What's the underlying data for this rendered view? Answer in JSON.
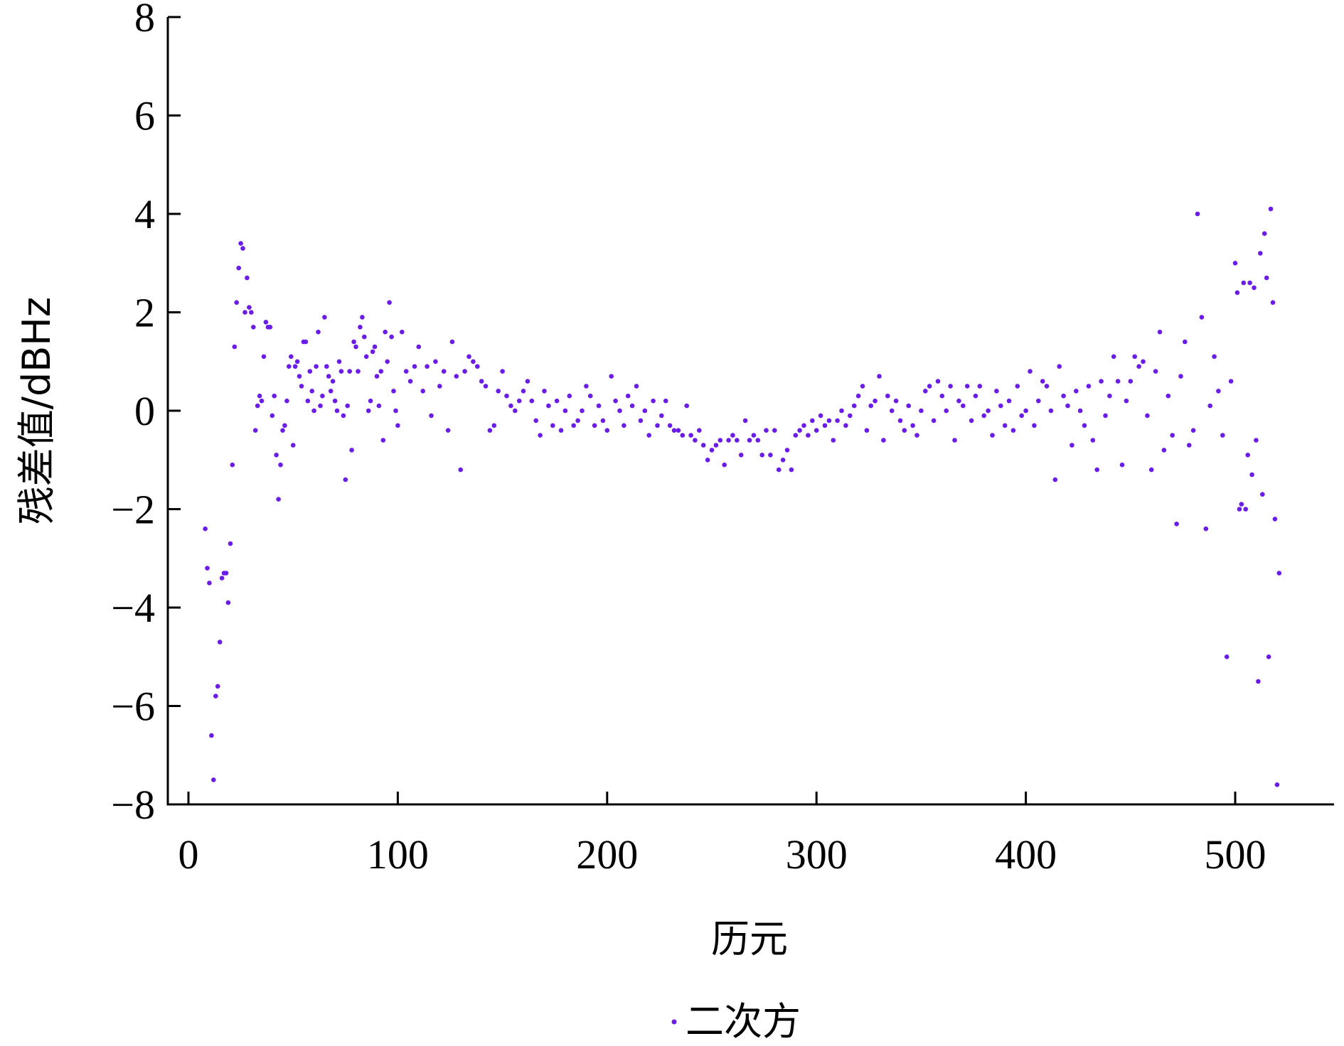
{
  "chart_data": {
    "type": "scatter",
    "title": "",
    "xlabel": "历元",
    "ylabel": "残差值/dBHz",
    "xlim": [
      -10,
      550
    ],
    "ylim": [
      -8,
      8
    ],
    "xticks": [
      0,
      100,
      200,
      300,
      400,
      500
    ],
    "yticks": [
      -8,
      -6,
      -4,
      -2,
      0,
      2,
      4,
      6,
      8
    ],
    "xtick_labels": [
      "0",
      "100",
      "200",
      "300",
      "400",
      "500"
    ],
    "ytick_labels": [
      "−8",
      "−6",
      "−4",
      "−2",
      "0",
      "2",
      "4",
      "6",
      "8"
    ],
    "grid": false,
    "legend_position": "bottom-center",
    "series": [
      {
        "name": "二次方",
        "color": "#6a1de8",
        "marker": "dot",
        "points": [
          [
            8,
            -2.4
          ],
          [
            9,
            -3.2
          ],
          [
            10,
            -3.5
          ],
          [
            11,
            -6.6
          ],
          [
            12,
            -7.5
          ],
          [
            13,
            -5.8
          ],
          [
            14,
            -5.6
          ],
          [
            15,
            -4.7
          ],
          [
            16,
            -3.4
          ],
          [
            17,
            -3.3
          ],
          [
            18,
            -3.3
          ],
          [
            19,
            -3.9
          ],
          [
            20,
            -2.7
          ],
          [
            21,
            -1.1
          ],
          [
            22,
            1.3
          ],
          [
            23,
            2.2
          ],
          [
            24,
            2.9
          ],
          [
            25,
            3.4
          ],
          [
            26,
            3.3
          ],
          [
            27,
            2.0
          ],
          [
            28,
            2.7
          ],
          [
            29,
            2.1
          ],
          [
            30,
            2.0
          ],
          [
            31,
            1.7
          ],
          [
            32,
            -0.4
          ],
          [
            33,
            0.1
          ],
          [
            34,
            0.3
          ],
          [
            35,
            0.2
          ],
          [
            36,
            1.1
          ],
          [
            37,
            1.8
          ],
          [
            38,
            1.7
          ],
          [
            39,
            1.7
          ],
          [
            40,
            -0.1
          ],
          [
            41,
            0.3
          ],
          [
            42,
            -0.9
          ],
          [
            43,
            -1.8
          ],
          [
            44,
            -1.1
          ],
          [
            45,
            -0.4
          ],
          [
            46,
            -0.3
          ],
          [
            47,
            0.2
          ],
          [
            48,
            0.9
          ],
          [
            49,
            1.1
          ],
          [
            50,
            -0.7
          ],
          [
            51,
            0.9
          ],
          [
            52,
            1.0
          ],
          [
            53,
            0.7
          ],
          [
            54,
            0.5
          ],
          [
            55,
            1.4
          ],
          [
            56,
            1.4
          ],
          [
            57,
            0.2
          ],
          [
            58,
            0.8
          ],
          [
            59,
            0.4
          ],
          [
            60,
            0.0
          ],
          [
            61,
            0.9
          ],
          [
            62,
            1.6
          ],
          [
            63,
            0.1
          ],
          [
            64,
            0.3
          ],
          [
            65,
            1.9
          ],
          [
            66,
            0.9
          ],
          [
            67,
            0.7
          ],
          [
            68,
            0.4
          ],
          [
            69,
            0.6
          ],
          [
            70,
            0.2
          ],
          [
            71,
            0.0
          ],
          [
            72,
            1.0
          ],
          [
            73,
            0.8
          ],
          [
            74,
            -0.1
          ],
          [
            75,
            -1.4
          ],
          [
            76,
            0.1
          ],
          [
            77,
            0.8
          ],
          [
            78,
            -0.8
          ],
          [
            79,
            1.4
          ],
          [
            80,
            1.3
          ],
          [
            81,
            0.8
          ],
          [
            82,
            1.7
          ],
          [
            83,
            1.9
          ],
          [
            84,
            1.5
          ],
          [
            85,
            1.1
          ],
          [
            86,
            0.0
          ],
          [
            87,
            0.2
          ],
          [
            88,
            1.2
          ],
          [
            89,
            1.3
          ],
          [
            90,
            0.7
          ],
          [
            91,
            0.1
          ],
          [
            92,
            0.8
          ],
          [
            93,
            -0.6
          ],
          [
            94,
            1.6
          ],
          [
            95,
            1.0
          ],
          [
            96,
            2.2
          ],
          [
            97,
            1.5
          ],
          [
            98,
            0.4
          ],
          [
            99,
            0.0
          ],
          [
            100,
            -0.3
          ],
          [
            102,
            1.6
          ],
          [
            104,
            0.8
          ],
          [
            106,
            0.6
          ],
          [
            108,
            0.9
          ],
          [
            110,
            1.3
          ],
          [
            112,
            0.4
          ],
          [
            114,
            0.9
          ],
          [
            116,
            -0.1
          ],
          [
            118,
            1.0
          ],
          [
            120,
            0.5
          ],
          [
            122,
            0.8
          ],
          [
            124,
            -0.4
          ],
          [
            126,
            1.4
          ],
          [
            128,
            0.7
          ],
          [
            130,
            -1.2
          ],
          [
            132,
            0.8
          ],
          [
            134,
            1.1
          ],
          [
            136,
            1.0
          ],
          [
            138,
            0.9
          ],
          [
            140,
            0.6
          ],
          [
            142,
            0.5
          ],
          [
            144,
            -0.4
          ],
          [
            146,
            -0.3
          ],
          [
            148,
            0.4
          ],
          [
            150,
            0.8
          ],
          [
            152,
            0.3
          ],
          [
            154,
            0.1
          ],
          [
            156,
            0.0
          ],
          [
            158,
            0.2
          ],
          [
            160,
            0.4
          ],
          [
            162,
            0.6
          ],
          [
            164,
            0.2
          ],
          [
            166,
            -0.2
          ],
          [
            168,
            -0.5
          ],
          [
            170,
            0.4
          ],
          [
            172,
            0.1
          ],
          [
            174,
            -0.3
          ],
          [
            176,
            0.2
          ],
          [
            178,
            -0.4
          ],
          [
            180,
            0.0
          ],
          [
            182,
            0.3
          ],
          [
            184,
            -0.3
          ],
          [
            186,
            -0.2
          ],
          [
            188,
            0.0
          ],
          [
            190,
            0.5
          ],
          [
            192,
            0.3
          ],
          [
            194,
            -0.3
          ],
          [
            196,
            0.1
          ],
          [
            198,
            -0.2
          ],
          [
            200,
            -0.4
          ],
          [
            202,
            0.7
          ],
          [
            204,
            0.2
          ],
          [
            206,
            0.0
          ],
          [
            208,
            -0.3
          ],
          [
            210,
            0.3
          ],
          [
            212,
            0.1
          ],
          [
            214,
            0.5
          ],
          [
            216,
            -0.2
          ],
          [
            218,
            0.0
          ],
          [
            220,
            -0.5
          ],
          [
            222,
            0.2
          ],
          [
            224,
            -0.3
          ],
          [
            226,
            -0.1
          ],
          [
            228,
            0.2
          ],
          [
            230,
            -0.3
          ],
          [
            232,
            -0.4
          ],
          [
            234,
            -0.4
          ],
          [
            236,
            -0.5
          ],
          [
            238,
            0.1
          ],
          [
            240,
            -0.5
          ],
          [
            242,
            -0.6
          ],
          [
            244,
            -0.4
          ],
          [
            246,
            -0.7
          ],
          [
            248,
            -1.0
          ],
          [
            250,
            -0.8
          ],
          [
            252,
            -0.7
          ],
          [
            254,
            -0.6
          ],
          [
            256,
            -1.1
          ],
          [
            258,
            -0.6
          ],
          [
            260,
            -0.5
          ],
          [
            262,
            -0.6
          ],
          [
            264,
            -0.9
          ],
          [
            266,
            -0.2
          ],
          [
            268,
            -0.6
          ],
          [
            270,
            -0.5
          ],
          [
            272,
            -0.6
          ],
          [
            274,
            -0.9
          ],
          [
            276,
            -0.4
          ],
          [
            278,
            -0.9
          ],
          [
            280,
            -0.4
          ],
          [
            282,
            -1.2
          ],
          [
            284,
            -1.0
          ],
          [
            286,
            -0.8
          ],
          [
            288,
            -1.2
          ],
          [
            290,
            -0.5
          ],
          [
            292,
            -0.4
          ],
          [
            294,
            -0.3
          ],
          [
            296,
            -0.5
          ],
          [
            298,
            -0.2
          ],
          [
            300,
            -0.4
          ],
          [
            302,
            -0.1
          ],
          [
            304,
            -0.3
          ],
          [
            306,
            -0.2
          ],
          [
            308,
            -0.6
          ],
          [
            310,
            -0.2
          ],
          [
            312,
            0.0
          ],
          [
            314,
            -0.3
          ],
          [
            316,
            -0.1
          ],
          [
            318,
            0.1
          ],
          [
            320,
            0.3
          ],
          [
            322,
            0.5
          ],
          [
            324,
            -0.4
          ],
          [
            326,
            0.1
          ],
          [
            328,
            0.2
          ],
          [
            330,
            0.7
          ],
          [
            332,
            -0.6
          ],
          [
            334,
            0.3
          ],
          [
            336,
            0.0
          ],
          [
            338,
            0.2
          ],
          [
            340,
            -0.2
          ],
          [
            342,
            -0.4
          ],
          [
            344,
            0.1
          ],
          [
            346,
            -0.3
          ],
          [
            348,
            -0.5
          ],
          [
            350,
            0.0
          ],
          [
            352,
            0.4
          ],
          [
            354,
            0.5
          ],
          [
            356,
            -0.2
          ],
          [
            358,
            0.6
          ],
          [
            360,
            0.3
          ],
          [
            362,
            0.0
          ],
          [
            364,
            0.5
          ],
          [
            366,
            -0.6
          ],
          [
            368,
            0.2
          ],
          [
            370,
            0.1
          ],
          [
            372,
            0.5
          ],
          [
            374,
            -0.2
          ],
          [
            376,
            0.3
          ],
          [
            378,
            0.5
          ],
          [
            380,
            -0.1
          ],
          [
            382,
            0.0
          ],
          [
            384,
            -0.5
          ],
          [
            386,
            0.4
          ],
          [
            388,
            0.1
          ],
          [
            390,
            -0.3
          ],
          [
            392,
            0.2
          ],
          [
            394,
            -0.4
          ],
          [
            396,
            0.5
          ],
          [
            398,
            -0.1
          ],
          [
            400,
            0.0
          ],
          [
            402,
            0.8
          ],
          [
            404,
            -0.3
          ],
          [
            406,
            0.2
          ],
          [
            408,
            0.6
          ],
          [
            410,
            0.5
          ],
          [
            412,
            0.0
          ],
          [
            414,
            -1.4
          ],
          [
            416,
            0.9
          ],
          [
            418,
            0.3
          ],
          [
            420,
            0.1
          ],
          [
            422,
            -0.7
          ],
          [
            424,
            0.4
          ],
          [
            426,
            0.0
          ],
          [
            428,
            -0.3
          ],
          [
            430,
            0.5
          ],
          [
            432,
            -0.6
          ],
          [
            434,
            -1.2
          ],
          [
            436,
            0.6
          ],
          [
            438,
            -0.1
          ],
          [
            440,
            0.3
          ],
          [
            442,
            1.1
          ],
          [
            444,
            0.6
          ],
          [
            446,
            -1.1
          ],
          [
            448,
            0.2
          ],
          [
            450,
            0.6
          ],
          [
            452,
            1.1
          ],
          [
            454,
            0.9
          ],
          [
            456,
            1.0
          ],
          [
            458,
            -0.1
          ],
          [
            460,
            -1.2
          ],
          [
            462,
            0.8
          ],
          [
            464,
            1.6
          ],
          [
            466,
            -0.8
          ],
          [
            468,
            0.3
          ],
          [
            470,
            -0.5
          ],
          [
            472,
            -2.3
          ],
          [
            474,
            0.7
          ],
          [
            476,
            1.4
          ],
          [
            478,
            -0.7
          ],
          [
            480,
            -0.4
          ],
          [
            482,
            4.0
          ],
          [
            484,
            1.9
          ],
          [
            486,
            -2.4
          ],
          [
            488,
            0.1
          ],
          [
            490,
            1.1
          ],
          [
            492,
            0.4
          ],
          [
            494,
            -0.5
          ],
          [
            496,
            -5.0
          ],
          [
            498,
            0.6
          ],
          [
            500,
            3.0
          ],
          [
            501,
            2.4
          ],
          [
            502,
            -2.0
          ],
          [
            503,
            -1.9
          ],
          [
            504,
            2.6
          ],
          [
            505,
            -2.0
          ],
          [
            506,
            -0.9
          ],
          [
            507,
            2.6
          ],
          [
            508,
            -1.3
          ],
          [
            509,
            2.5
          ],
          [
            510,
            -0.6
          ],
          [
            511,
            -5.5
          ],
          [
            512,
            3.2
          ],
          [
            513,
            -1.7
          ],
          [
            514,
            3.6
          ],
          [
            515,
            2.7
          ],
          [
            516,
            -5.0
          ],
          [
            517,
            4.1
          ],
          [
            518,
            2.2
          ],
          [
            519,
            -2.2
          ],
          [
            520,
            -7.6
          ],
          [
            521,
            -3.3
          ]
        ]
      }
    ]
  }
}
